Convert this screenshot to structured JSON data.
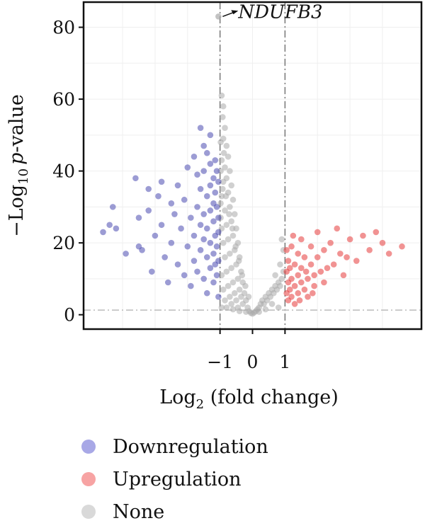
{
  "chart_data": {
    "type": "scatter",
    "title": "",
    "xlabel": "Log",
    "xlabel_sub": "2",
    "xlabel_rest": " (fold change)",
    "ylabel_prefix": "−Log",
    "ylabel_sub": "10",
    "ylabel_p": "p",
    "ylabel_rest": "-value",
    "xlim": [
      -5.2,
      5.2
    ],
    "ylim": [
      -4,
      87
    ],
    "x_ticks": [
      -1,
      0,
      1
    ],
    "x_tick_labels": [
      "−1",
      "0",
      "1"
    ],
    "y_ticks": [
      0,
      20,
      40,
      60,
      80
    ],
    "y_tick_labels": [
      "0",
      "20",
      "40",
      "60",
      "80"
    ],
    "thresholds": {
      "fold_change": [
        -1,
        1
      ],
      "p_value_line": 1.3
    },
    "grid": true,
    "legend_position": "below",
    "annotation": {
      "label": "NDUFB3",
      "x": -1.05,
      "y": 83
    },
    "series": [
      {
        "name": "Downregulation",
        "color": "#4b4bb0",
        "points": [
          [
            -4.6,
            23
          ],
          [
            -4.4,
            25
          ],
          [
            -4.3,
            30
          ],
          [
            -4.2,
            24
          ],
          [
            -3.9,
            17
          ],
          [
            -3.6,
            38
          ],
          [
            -3.5,
            27
          ],
          [
            -3.5,
            19
          ],
          [
            -3.4,
            18
          ],
          [
            -3.2,
            35
          ],
          [
            -3.2,
            29
          ],
          [
            -3.1,
            12
          ],
          [
            -3.0,
            22
          ],
          [
            -2.9,
            33
          ],
          [
            -2.8,
            37
          ],
          [
            -2.8,
            25
          ],
          [
            -2.7,
            16
          ],
          [
            -2.6,
            9
          ],
          [
            -2.5,
            31
          ],
          [
            -2.5,
            20
          ],
          [
            -2.4,
            28
          ],
          [
            -2.3,
            14
          ],
          [
            -2.3,
            36
          ],
          [
            -2.2,
            24
          ],
          [
            -2.1,
            32
          ],
          [
            -2.1,
            11
          ],
          [
            -2.0,
            41
          ],
          [
            -2.0,
            19
          ],
          [
            -1.9,
            27
          ],
          [
            -1.9,
            8
          ],
          [
            -1.8,
            44
          ],
          [
            -1.8,
            22
          ],
          [
            -1.8,
            15
          ],
          [
            -1.7,
            39
          ],
          [
            -1.7,
            30
          ],
          [
            -1.7,
            12
          ],
          [
            -1.6,
            52
          ],
          [
            -1.6,
            35
          ],
          [
            -1.6,
            25
          ],
          [
            -1.6,
            18
          ],
          [
            -1.5,
            47
          ],
          [
            -1.5,
            40
          ],
          [
            -1.5,
            28
          ],
          [
            -1.5,
            21
          ],
          [
            -1.5,
            10
          ],
          [
            -1.4,
            45
          ],
          [
            -1.4,
            33
          ],
          [
            -1.4,
            24
          ],
          [
            -1.4,
            16
          ],
          [
            -1.4,
            6
          ],
          [
            -1.3,
            50
          ],
          [
            -1.3,
            42
          ],
          [
            -1.3,
            36
          ],
          [
            -1.3,
            29
          ],
          [
            -1.3,
            20
          ],
          [
            -1.3,
            13
          ],
          [
            -1.2,
            38
          ],
          [
            -1.2,
            31
          ],
          [
            -1.2,
            26
          ],
          [
            -1.2,
            17
          ],
          [
            -1.2,
            9
          ],
          [
            -1.15,
            43
          ],
          [
            -1.15,
            34
          ],
          [
            -1.15,
            22
          ],
          [
            -1.15,
            14
          ],
          [
            -1.1,
            40
          ],
          [
            -1.1,
            30
          ],
          [
            -1.1,
            19
          ],
          [
            -1.1,
            11
          ],
          [
            -1.05,
            37
          ],
          [
            -1.05,
            27
          ],
          [
            -1.05,
            23
          ],
          [
            -1.05,
            15
          ],
          [
            -1.05,
            5
          ]
        ]
      },
      {
        "name": "Upregulation",
        "color": "#e53a3a",
        "points": [
          [
            1.05,
            6
          ],
          [
            1.05,
            12
          ],
          [
            1.05,
            18
          ],
          [
            1.1,
            4
          ],
          [
            1.1,
            9
          ],
          [
            1.1,
            15
          ],
          [
            1.15,
            7
          ],
          [
            1.15,
            13
          ],
          [
            1.2,
            5
          ],
          [
            1.2,
            10
          ],
          [
            1.2,
            19
          ],
          [
            1.3,
            8
          ],
          [
            1.3,
            14
          ],
          [
            1.3,
            3
          ],
          [
            1.4,
            11
          ],
          [
            1.4,
            6
          ],
          [
            1.4,
            17
          ],
          [
            1.5,
            9
          ],
          [
            1.5,
            13
          ],
          [
            1.5,
            21
          ],
          [
            1.6,
            7
          ],
          [
            1.6,
            16
          ],
          [
            1.7,
            10
          ],
          [
            1.7,
            5
          ],
          [
            1.8,
            14
          ],
          [
            1.8,
            19
          ],
          [
            1.9,
            11
          ],
          [
            1.9,
            8
          ],
          [
            2.0,
            16
          ],
          [
            2.0,
            23
          ],
          [
            2.1,
            12
          ],
          [
            2.2,
            18
          ],
          [
            2.2,
            9
          ],
          [
            2.4,
            20
          ],
          [
            2.5,
            14
          ],
          [
            2.6,
            24
          ],
          [
            2.7,
            17
          ],
          [
            2.8,
            11
          ],
          [
            3.0,
            21
          ],
          [
            3.2,
            15
          ],
          [
            3.4,
            22
          ],
          [
            3.6,
            18
          ],
          [
            3.8,
            23
          ],
          [
            4.0,
            20
          ],
          [
            4.2,
            17
          ],
          [
            4.6,
            19
          ],
          [
            1.25,
            22
          ],
          [
            1.45,
            4
          ],
          [
            1.65,
            12
          ],
          [
            1.85,
            6
          ],
          [
            2.3,
            13
          ],
          [
            2.9,
            16
          ]
        ]
      },
      {
        "name": "None",
        "color": "#a9a9a9",
        "points": [
          [
            -0.95,
            61
          ],
          [
            -0.9,
            58
          ],
          [
            -0.92,
            55
          ],
          [
            -0.85,
            52
          ],
          [
            -0.9,
            49
          ],
          [
            -0.8,
            47
          ],
          [
            -0.88,
            45
          ],
          [
            -0.95,
            43
          ],
          [
            -0.75,
            44
          ],
          [
            -0.85,
            41
          ],
          [
            -0.7,
            40
          ],
          [
            -0.8,
            38
          ],
          [
            -0.9,
            37
          ],
          [
            -0.65,
            36
          ],
          [
            -0.75,
            34
          ],
          [
            -0.95,
            33
          ],
          [
            -0.6,
            32
          ],
          [
            -0.7,
            30
          ],
          [
            -0.85,
            29
          ],
          [
            -0.55,
            28
          ],
          [
            -0.65,
            26
          ],
          [
            -0.8,
            25
          ],
          [
            -0.95,
            24
          ],
          [
            -0.5,
            24
          ],
          [
            -0.6,
            22
          ],
          [
            -0.75,
            21
          ],
          [
            -0.9,
            20
          ],
          [
            -0.45,
            20
          ],
          [
            -0.55,
            18
          ],
          [
            -0.7,
            17
          ],
          [
            -0.85,
            16
          ],
          [
            -0.4,
            16
          ],
          [
            -0.5,
            14
          ],
          [
            -0.65,
            13
          ],
          [
            -0.8,
            12
          ],
          [
            -0.95,
            11
          ],
          [
            -0.35,
            12
          ],
          [
            -0.45,
            10
          ],
          [
            -0.6,
            9
          ],
          [
            -0.75,
            8
          ],
          [
            -0.9,
            7
          ],
          [
            -0.3,
            9
          ],
          [
            -0.4,
            7
          ],
          [
            -0.55,
            6
          ],
          [
            -0.7,
            5
          ],
          [
            -0.85,
            4
          ],
          [
            -0.25,
            6
          ],
          [
            -0.35,
            5
          ],
          [
            -0.5,
            4
          ],
          [
            -0.65,
            3
          ],
          [
            -0.8,
            2
          ],
          [
            -0.95,
            2
          ],
          [
            -0.2,
            4
          ],
          [
            -0.3,
            3
          ],
          [
            -0.45,
            2
          ],
          [
            -0.6,
            1.5
          ],
          [
            -0.15,
            2
          ],
          [
            -0.1,
            1
          ],
          [
            -0.05,
            0.5
          ],
          [
            0.0,
            0.3
          ],
          [
            0.05,
            0.6
          ],
          [
            0.1,
            1
          ],
          [
            0.15,
            1.5
          ],
          [
            0.2,
            2
          ],
          [
            0.25,
            3
          ],
          [
            0.3,
            4
          ],
          [
            0.35,
            3
          ],
          [
            0.4,
            5
          ],
          [
            0.45,
            4
          ],
          [
            0.5,
            6
          ],
          [
            0.55,
            5
          ],
          [
            0.6,
            7
          ],
          [
            0.65,
            6
          ],
          [
            0.7,
            8
          ],
          [
            0.75,
            7
          ],
          [
            0.8,
            9
          ],
          [
            0.85,
            8
          ],
          [
            0.9,
            10
          ],
          [
            0.95,
            12
          ],
          [
            0.95,
            18
          ],
          [
            0.9,
            21
          ],
          [
            0.85,
            14
          ],
          [
            0.7,
            11
          ],
          [
            0.6,
            3
          ],
          [
            0.8,
            2
          ],
          [
            0.4,
            1.5
          ],
          [
            0.2,
            0.8
          ],
          [
            -0.2,
            0.8
          ],
          [
            -0.4,
            1
          ],
          [
            -0.98,
            48
          ],
          [
            -0.98,
            40
          ],
          [
            -0.98,
            31
          ],
          [
            -0.98,
            27
          ],
          [
            -0.92,
            35
          ],
          [
            -0.82,
            33
          ],
          [
            -0.72,
            28
          ],
          [
            -0.62,
            24
          ],
          [
            -0.52,
            19
          ],
          [
            -0.42,
            15
          ],
          [
            -0.32,
            11
          ],
          [
            -0.22,
            8
          ],
          [
            -0.12,
            5
          ]
        ]
      }
    ]
  },
  "legend": {
    "items": [
      {
        "label": "Downregulation",
        "color": "#a8a8e6"
      },
      {
        "label": "Upregulation",
        "color": "#f7a3a3"
      },
      {
        "label": "None",
        "color": "#d9d9d9"
      }
    ]
  }
}
